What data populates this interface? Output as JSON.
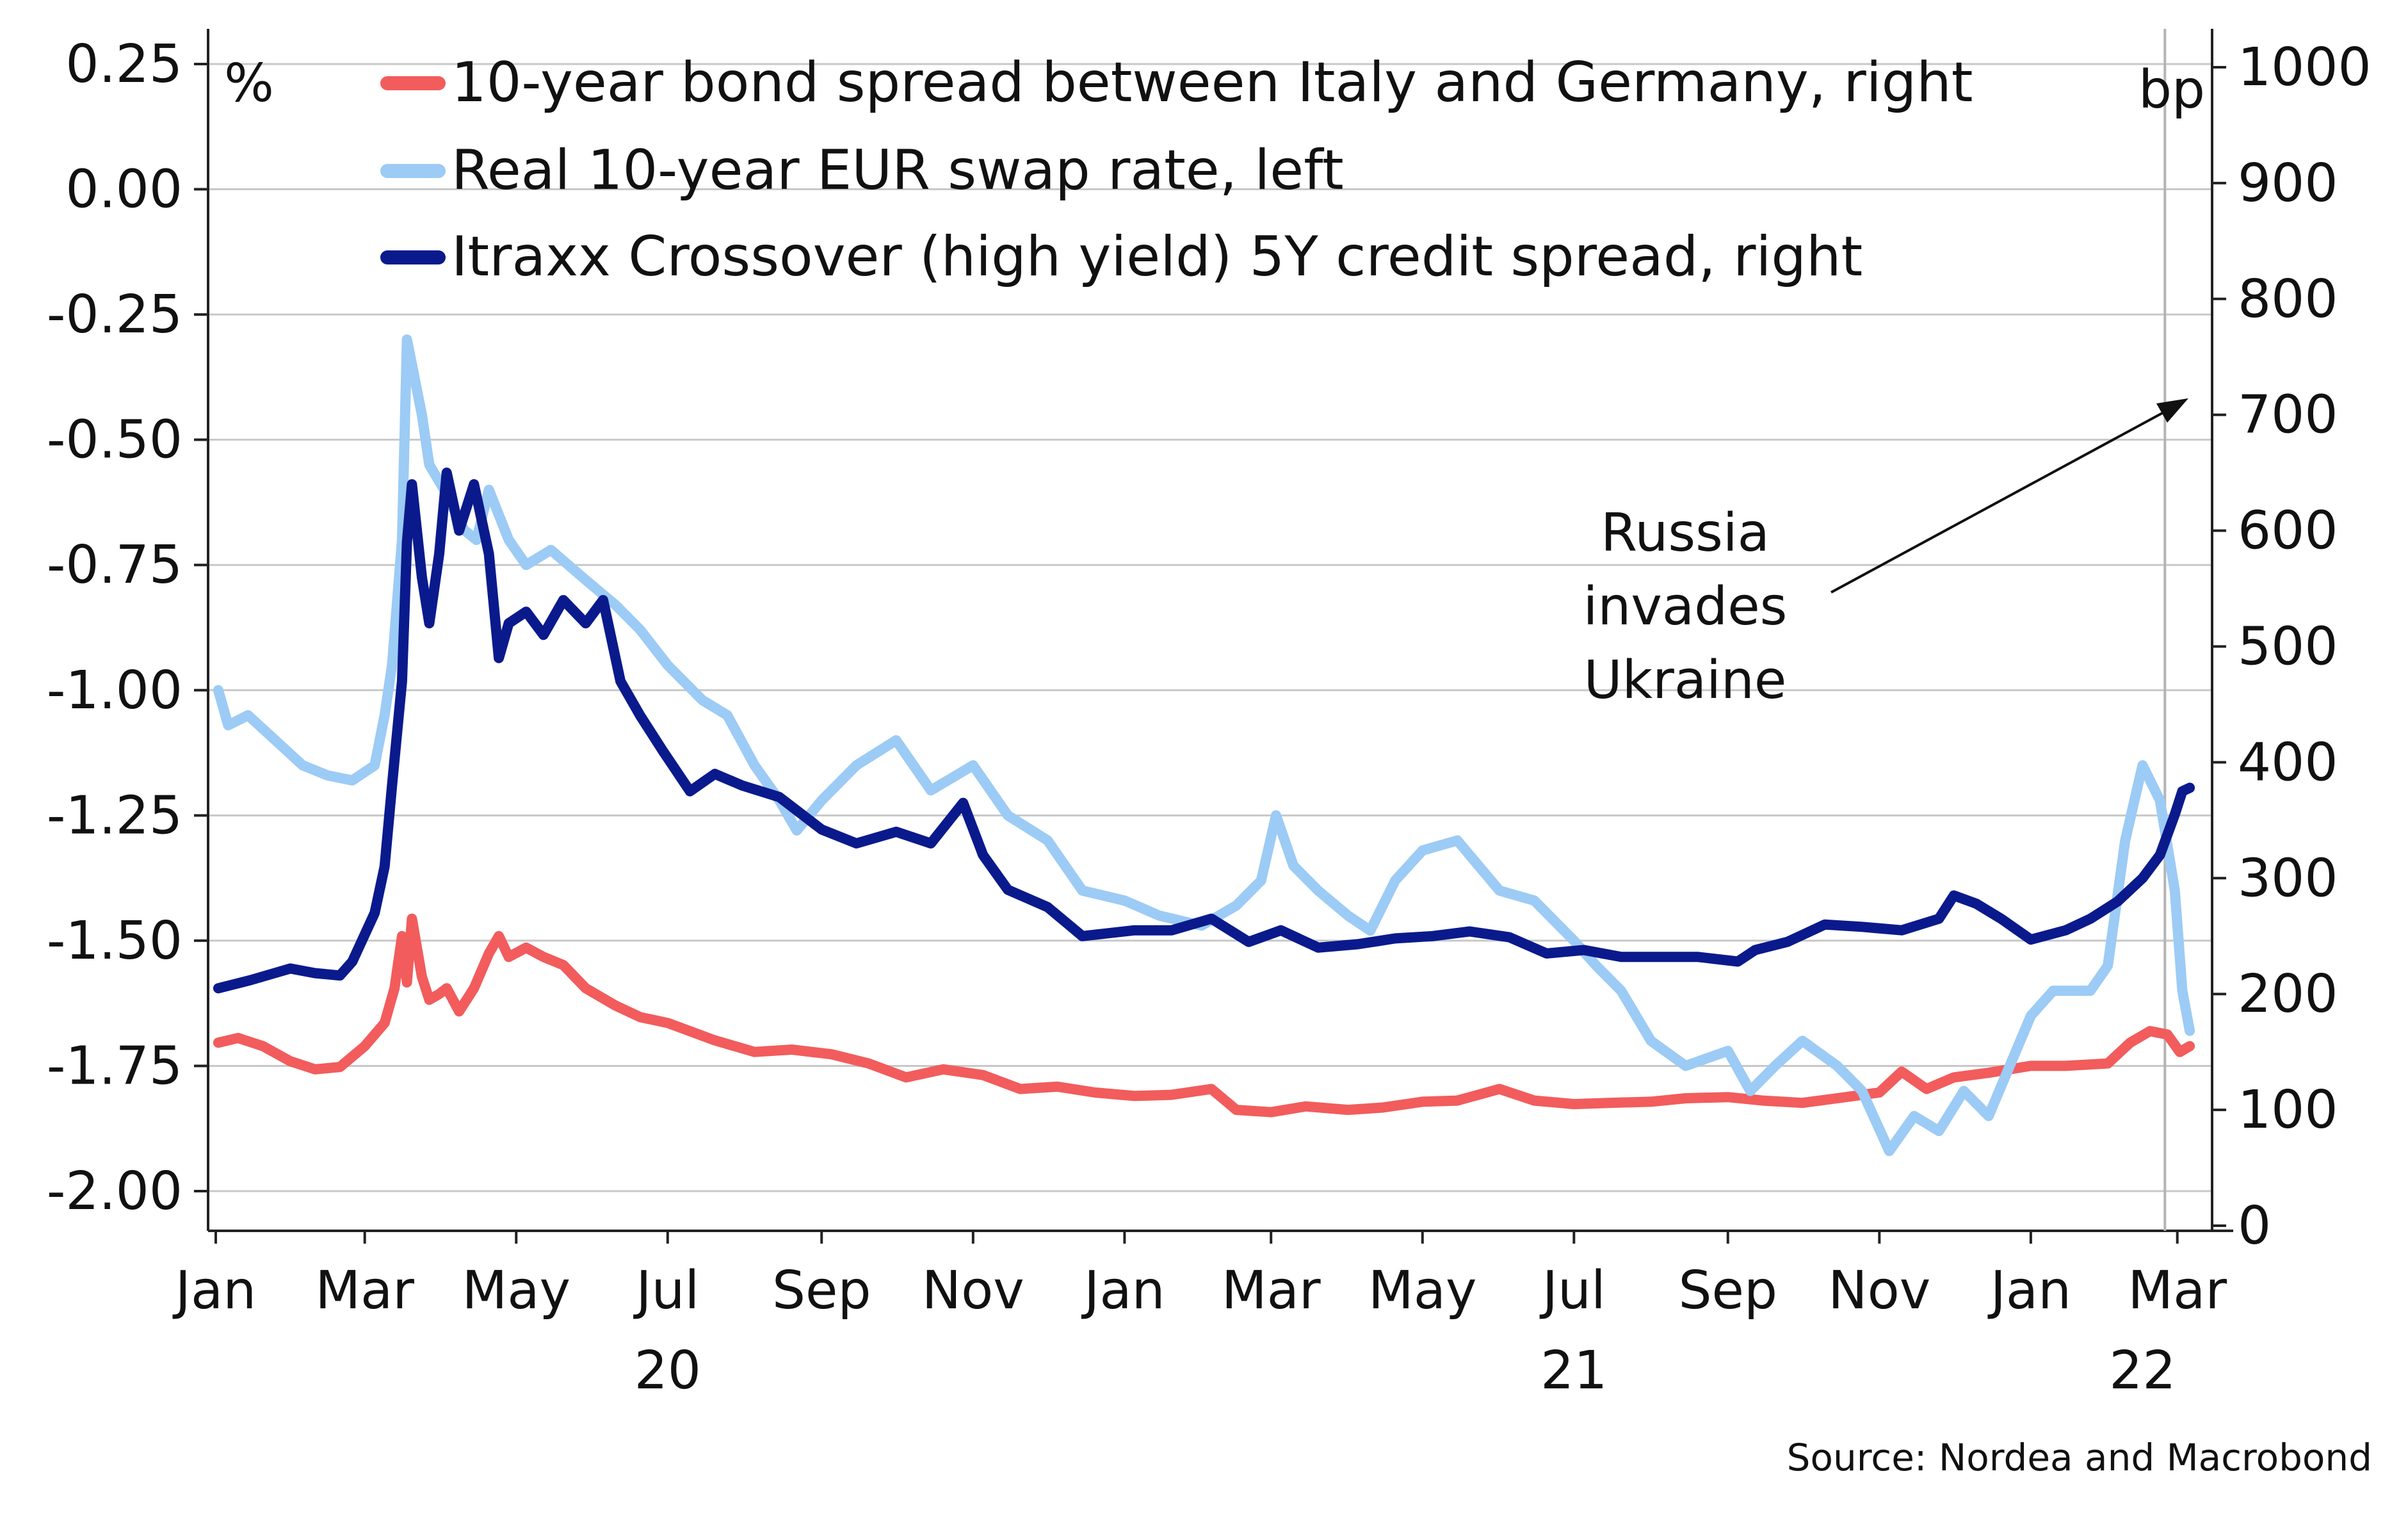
{
  "chart_data": {
    "type": "line",
    "left_unit": "%",
    "right_unit": "bp",
    "left_axis": {
      "ylim": [
        -2.0,
        0.25
      ],
      "ticks": [
        "0.25",
        "0.00",
        "-0.25",
        "-0.50",
        "-0.75",
        "-1.00",
        "-1.25",
        "-1.50",
        "-1.75",
        "-2.00"
      ]
    },
    "right_axis": {
      "ylim": [
        0,
        1000
      ],
      "ticks": [
        "1000",
        "900",
        "800",
        "700",
        "600",
        "500",
        "400",
        "300",
        "200",
        "100",
        "0"
      ]
    },
    "x_axis": {
      "range": [
        "2020-01-01",
        "2022-03-15"
      ],
      "month_ticks": [
        {
          "label": "Jan",
          "date": "2020-01-01"
        },
        {
          "label": "Mar",
          "date": "2020-03-01"
        },
        {
          "label": "May",
          "date": "2020-05-01"
        },
        {
          "label": "Jul",
          "date": "2020-07-01"
        },
        {
          "label": "Sep",
          "date": "2020-09-01"
        },
        {
          "label": "Nov",
          "date": "2020-11-01"
        },
        {
          "label": "Jan",
          "date": "2021-01-01"
        },
        {
          "label": "Mar",
          "date": "2021-03-01"
        },
        {
          "label": "May",
          "date": "2021-05-01"
        },
        {
          "label": "Jul",
          "date": "2021-07-01"
        },
        {
          "label": "Sep",
          "date": "2021-09-01"
        },
        {
          "label": "Nov",
          "date": "2021-11-01"
        },
        {
          "label": "Jan",
          "date": "2022-01-01"
        },
        {
          "label": "Mar",
          "date": "2022-03-01"
        }
      ],
      "year_labels": [
        {
          "label": "20",
          "date": "2020-07-01"
        },
        {
          "label": "21",
          "date": "2021-07-01"
        },
        {
          "label": "22",
          "date": "2022-02-15"
        }
      ]
    },
    "grid": "horizontal",
    "legend_position": "top-left",
    "series": [
      {
        "name": "10-year bond spread between Italy and Germany, right",
        "axis": "right",
        "color": "#f25c5c",
        "points": [
          [
            "2020-01-02",
            158
          ],
          [
            "2020-01-10",
            162
          ],
          [
            "2020-01-20",
            155
          ],
          [
            "2020-01-31",
            142
          ],
          [
            "2020-02-10",
            135
          ],
          [
            "2020-02-20",
            137
          ],
          [
            "2020-03-01",
            155
          ],
          [
            "2020-03-09",
            175
          ],
          [
            "2020-03-13",
            205
          ],
          [
            "2020-03-16",
            250
          ],
          [
            "2020-03-18",
            210
          ],
          [
            "2020-03-20",
            265
          ],
          [
            "2020-03-24",
            215
          ],
          [
            "2020-03-27",
            195
          ],
          [
            "2020-03-31",
            200
          ],
          [
            "2020-04-03",
            205
          ],
          [
            "2020-04-08",
            185
          ],
          [
            "2020-04-14",
            205
          ],
          [
            "2020-04-20",
            235
          ],
          [
            "2020-04-24",
            250
          ],
          [
            "2020-04-28",
            232
          ],
          [
            "2020-05-05",
            240
          ],
          [
            "2020-05-12",
            232
          ],
          [
            "2020-05-20",
            225
          ],
          [
            "2020-05-29",
            205
          ],
          [
            "2020-06-10",
            190
          ],
          [
            "2020-06-20",
            180
          ],
          [
            "2020-07-01",
            175
          ],
          [
            "2020-07-20",
            160
          ],
          [
            "2020-08-05",
            150
          ],
          [
            "2020-08-20",
            152
          ],
          [
            "2020-09-05",
            148
          ],
          [
            "2020-09-20",
            140
          ],
          [
            "2020-10-05",
            128
          ],
          [
            "2020-10-20",
            135
          ],
          [
            "2020-11-05",
            130
          ],
          [
            "2020-11-20",
            118
          ],
          [
            "2020-12-05",
            120
          ],
          [
            "2020-12-20",
            115
          ],
          [
            "2021-01-05",
            112
          ],
          [
            "2021-01-20",
            113
          ],
          [
            "2021-02-05",
            118
          ],
          [
            "2021-02-15",
            100
          ],
          [
            "2021-03-01",
            98
          ],
          [
            "2021-03-15",
            103
          ],
          [
            "2021-04-01",
            100
          ],
          [
            "2021-04-15",
            102
          ],
          [
            "2021-05-01",
            107
          ],
          [
            "2021-05-15",
            108
          ],
          [
            "2021-06-01",
            118
          ],
          [
            "2021-06-15",
            108
          ],
          [
            "2021-07-01",
            105
          ],
          [
            "2021-07-15",
            106
          ],
          [
            "2021-08-01",
            107
          ],
          [
            "2021-08-15",
            110
          ],
          [
            "2021-09-01",
            111
          ],
          [
            "2021-09-15",
            108
          ],
          [
            "2021-10-01",
            106
          ],
          [
            "2021-10-15",
            110
          ],
          [
            "2021-11-01",
            115
          ],
          [
            "2021-11-10",
            133
          ],
          [
            "2021-11-20",
            118
          ],
          [
            "2021-12-01",
            128
          ],
          [
            "2021-12-15",
            132
          ],
          [
            "2022-01-01",
            138
          ],
          [
            "2022-01-15",
            138
          ],
          [
            "2022-02-01",
            140
          ],
          [
            "2022-02-10",
            158
          ],
          [
            "2022-02-18",
            168
          ],
          [
            "2022-02-25",
            165
          ],
          [
            "2022-03-02",
            150
          ],
          [
            "2022-03-06",
            155
          ]
        ]
      },
      {
        "name": "Real 10-year EUR swap rate, left",
        "axis": "left",
        "color": "#9ccbf5",
        "points": [
          [
            "2020-01-02",
            -1.0
          ],
          [
            "2020-01-06",
            -1.07
          ],
          [
            "2020-01-14",
            -1.05
          ],
          [
            "2020-01-25",
            -1.1
          ],
          [
            "2020-02-05",
            -1.15
          ],
          [
            "2020-02-15",
            -1.17
          ],
          [
            "2020-02-25",
            -1.18
          ],
          [
            "2020-03-05",
            -1.15
          ],
          [
            "2020-03-09",
            -1.05
          ],
          [
            "2020-03-12",
            -0.95
          ],
          [
            "2020-03-16",
            -0.7
          ],
          [
            "2020-03-18",
            -0.3
          ],
          [
            "2020-03-20",
            -0.35
          ],
          [
            "2020-03-24",
            -0.45
          ],
          [
            "2020-03-27",
            -0.55
          ],
          [
            "2020-04-02",
            -0.6
          ],
          [
            "2020-04-10",
            -0.68
          ],
          [
            "2020-04-15",
            -0.7
          ],
          [
            "2020-04-20",
            -0.6
          ],
          [
            "2020-04-28",
            -0.7
          ],
          [
            "2020-05-05",
            -0.75
          ],
          [
            "2020-05-15",
            -0.72
          ],
          [
            "2020-05-29",
            -0.78
          ],
          [
            "2020-06-10",
            -0.83
          ],
          [
            "2020-06-20",
            -0.88
          ],
          [
            "2020-07-01",
            -0.95
          ],
          [
            "2020-07-15",
            -1.02
          ],
          [
            "2020-07-25",
            -1.05
          ],
          [
            "2020-08-05",
            -1.15
          ],
          [
            "2020-08-15",
            -1.22
          ],
          [
            "2020-08-22",
            -1.28
          ],
          [
            "2020-09-01",
            -1.22
          ],
          [
            "2020-09-15",
            -1.15
          ],
          [
            "2020-10-01",
            -1.1
          ],
          [
            "2020-10-15",
            -1.2
          ],
          [
            "2020-11-01",
            -1.15
          ],
          [
            "2020-11-15",
            -1.25
          ],
          [
            "2020-12-01",
            -1.3
          ],
          [
            "2020-12-15",
            -1.4
          ],
          [
            "2021-01-01",
            -1.42
          ],
          [
            "2021-01-15",
            -1.45
          ],
          [
            "2021-02-01",
            -1.47
          ],
          [
            "2021-02-15",
            -1.43
          ],
          [
            "2021-02-25",
            -1.38
          ],
          [
            "2021-03-03",
            -1.25
          ],
          [
            "2021-03-10",
            -1.35
          ],
          [
            "2021-03-20",
            -1.4
          ],
          [
            "2021-04-01",
            -1.45
          ],
          [
            "2021-04-10",
            -1.48
          ],
          [
            "2021-04-20",
            -1.38
          ],
          [
            "2021-05-01",
            -1.32
          ],
          [
            "2021-05-15",
            -1.3
          ],
          [
            "2021-06-01",
            -1.4
          ],
          [
            "2021-06-15",
            -1.42
          ],
          [
            "2021-07-01",
            -1.5
          ],
          [
            "2021-07-10",
            -1.55
          ],
          [
            "2021-07-20",
            -1.6
          ],
          [
            "2021-08-01",
            -1.7
          ],
          [
            "2021-08-15",
            -1.75
          ],
          [
            "2021-09-01",
            -1.72
          ],
          [
            "2021-09-10",
            -1.8
          ],
          [
            "2021-09-20",
            -1.75
          ],
          [
            "2021-10-01",
            -1.7
          ],
          [
            "2021-10-15",
            -1.75
          ],
          [
            "2021-10-25",
            -1.8
          ],
          [
            "2021-11-05",
            -1.92
          ],
          [
            "2021-11-15",
            -1.85
          ],
          [
            "2021-11-25",
            -1.88
          ],
          [
            "2021-12-05",
            -1.8
          ],
          [
            "2021-12-15",
            -1.85
          ],
          [
            "2022-01-01",
            -1.65
          ],
          [
            "2022-01-10",
            -1.6
          ],
          [
            "2022-01-25",
            -1.6
          ],
          [
            "2022-02-01",
            -1.55
          ],
          [
            "2022-02-08",
            -1.3
          ],
          [
            "2022-02-15",
            -1.15
          ],
          [
            "2022-02-22",
            -1.22
          ],
          [
            "2022-02-28",
            -1.4
          ],
          [
            "2022-03-03",
            -1.6
          ],
          [
            "2022-03-06",
            -1.68
          ]
        ]
      },
      {
        "name": "Itraxx Crossover (high yield) 5Y credit spread, right",
        "axis": "right",
        "color": "#0a1a8c",
        "points": [
          [
            "2020-01-02",
            205
          ],
          [
            "2020-01-15",
            212
          ],
          [
            "2020-01-31",
            222
          ],
          [
            "2020-02-10",
            218
          ],
          [
            "2020-02-20",
            216
          ],
          [
            "2020-02-25",
            228
          ],
          [
            "2020-03-05",
            270
          ],
          [
            "2020-03-09",
            310
          ],
          [
            "2020-03-12",
            380
          ],
          [
            "2020-03-16",
            470
          ],
          [
            "2020-03-18",
            590
          ],
          [
            "2020-03-20",
            640
          ],
          [
            "2020-03-24",
            560
          ],
          [
            "2020-03-27",
            520
          ],
          [
            "2020-03-31",
            580
          ],
          [
            "2020-04-03",
            650
          ],
          [
            "2020-04-08",
            600
          ],
          [
            "2020-04-14",
            640
          ],
          [
            "2020-04-20",
            580
          ],
          [
            "2020-04-24",
            490
          ],
          [
            "2020-04-28",
            520
          ],
          [
            "2020-05-05",
            530
          ],
          [
            "2020-05-12",
            510
          ],
          [
            "2020-05-20",
            540
          ],
          [
            "2020-05-29",
            520
          ],
          [
            "2020-06-05",
            540
          ],
          [
            "2020-06-12",
            470
          ],
          [
            "2020-06-20",
            440
          ],
          [
            "2020-06-29",
            410
          ],
          [
            "2020-07-10",
            375
          ],
          [
            "2020-07-20",
            390
          ],
          [
            "2020-07-31",
            380
          ],
          [
            "2020-08-15",
            370
          ],
          [
            "2020-09-01",
            342
          ],
          [
            "2020-09-15",
            330
          ],
          [
            "2020-10-01",
            340
          ],
          [
            "2020-10-15",
            330
          ],
          [
            "2020-10-28",
            365
          ],
          [
            "2020-11-05",
            320
          ],
          [
            "2020-11-15",
            290
          ],
          [
            "2020-12-01",
            275
          ],
          [
            "2020-12-15",
            250
          ],
          [
            "2021-01-05",
            255
          ],
          [
            "2021-01-20",
            255
          ],
          [
            "2021-02-05",
            265
          ],
          [
            "2021-02-20",
            245
          ],
          [
            "2021-03-05",
            255
          ],
          [
            "2021-03-20",
            240
          ],
          [
            "2021-04-05",
            243
          ],
          [
            "2021-04-20",
            248
          ],
          [
            "2021-05-05",
            250
          ],
          [
            "2021-05-20",
            254
          ],
          [
            "2021-06-05",
            249
          ],
          [
            "2021-06-20",
            235
          ],
          [
            "2021-07-05",
            238
          ],
          [
            "2021-07-20",
            232
          ],
          [
            "2021-08-05",
            232
          ],
          [
            "2021-08-20",
            232
          ],
          [
            "2021-09-05",
            228
          ],
          [
            "2021-09-12",
            238
          ],
          [
            "2021-09-25",
            245
          ],
          [
            "2021-10-10",
            260
          ],
          [
            "2021-10-25",
            258
          ],
          [
            "2021-11-10",
            255
          ],
          [
            "2021-11-25",
            265
          ],
          [
            "2021-12-01",
            285
          ],
          [
            "2021-12-10",
            278
          ],
          [
            "2021-12-20",
            265
          ],
          [
            "2022-01-01",
            247
          ],
          [
            "2022-01-15",
            255
          ],
          [
            "2022-01-25",
            265
          ],
          [
            "2022-02-05",
            280
          ],
          [
            "2022-02-15",
            300
          ],
          [
            "2022-02-22",
            320
          ],
          [
            "2022-02-28",
            355
          ],
          [
            "2022-03-03",
            375
          ],
          [
            "2022-03-06",
            378
          ]
        ]
      }
    ],
    "annotation": {
      "text_lines": [
        "Russia",
        "invades",
        "Ukraine"
      ],
      "target_date": "2022-02-24"
    },
    "source": "Source: Nordea and Macrobond"
  }
}
